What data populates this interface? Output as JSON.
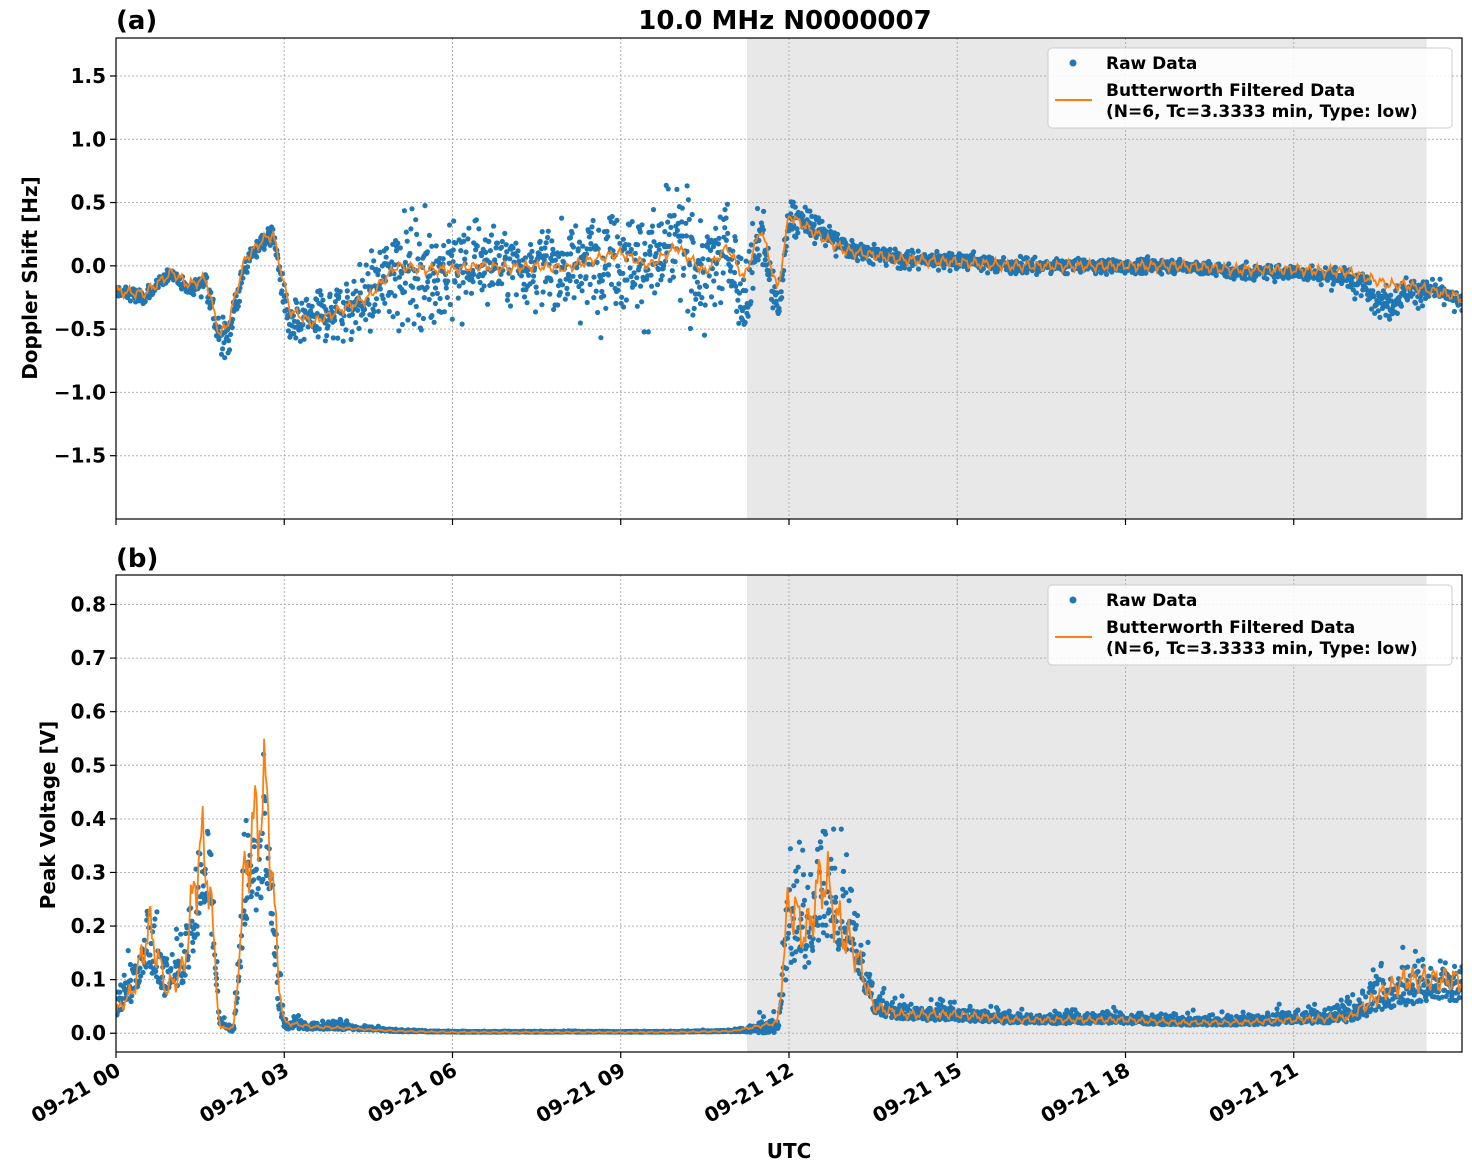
{
  "chart_data": [
    {
      "panel": "(a)",
      "title": "10.0 MHz N0000007",
      "type": "scatter",
      "xlabel": "",
      "ylabel": "Doppler Shift [Hz]",
      "xlim": [
        0,
        24
      ],
      "ylim": [
        -2.0,
        1.8
      ],
      "yticks": [
        1.5,
        1.0,
        0.5,
        0.0,
        -0.5,
        -1.0,
        -1.5
      ],
      "ytick_labels": [
        "1.5",
        "1.0",
        "0.5",
        "0.0",
        "−0.5",
        "−1.0",
        "−1.5"
      ],
      "xticks": [
        0,
        3,
        6,
        9,
        12,
        15,
        18,
        21
      ],
      "grid": true,
      "shaded_region": [
        11.25,
        23.37
      ],
      "legend": {
        "placement": "top-right",
        "entries": [
          "Raw Data",
          "Butterworth Filtered Data",
          "(N=6, Tc=3.3333 min, Type: low)"
        ]
      },
      "series": [
        {
          "name": "Raw Data",
          "kind": "scatter",
          "color": "#1f77b4",
          "x": [
            0.0,
            0.5,
            1.0,
            1.3,
            1.6,
            1.85,
            2.0,
            2.3,
            2.6,
            2.8,
            3.1,
            3.5,
            4.0,
            4.5,
            5.0,
            5.5,
            6.0,
            6.5,
            7.0,
            7.5,
            8.0,
            8.5,
            9.0,
            9.5,
            10.0,
            10.5,
            10.9,
            11.2,
            11.5,
            11.8,
            12.0,
            12.5,
            13.0,
            14.0,
            15.0,
            16.0,
            17.0,
            18.0,
            19.0,
            20.0,
            21.0,
            22.0,
            22.7,
            23.0,
            23.5,
            24.0
          ],
          "y": [
            -0.2,
            -0.25,
            -0.05,
            -0.2,
            -0.1,
            -0.6,
            -0.55,
            0.0,
            0.2,
            0.25,
            -0.5,
            -0.4,
            -0.35,
            -0.25,
            0.0,
            -0.05,
            -0.05,
            0.05,
            0.0,
            0.0,
            0.0,
            0.05,
            0.1,
            0.0,
            0.2,
            -0.1,
            0.2,
            -0.3,
            0.3,
            -0.4,
            0.4,
            0.3,
            0.15,
            0.05,
            0.05,
            0.0,
            0.0,
            0.0,
            0.0,
            -0.05,
            -0.05,
            -0.1,
            -0.3,
            -0.2,
            -0.2,
            -0.3
          ],
          "spread": [
            0.12,
            0.1,
            0.08,
            0.1,
            0.15,
            0.35,
            0.3,
            0.15,
            0.15,
            0.15,
            0.3,
            0.35,
            0.4,
            0.5,
            0.7,
            0.7,
            0.7,
            0.6,
            0.5,
            0.5,
            0.6,
            0.7,
            0.7,
            0.7,
            0.8,
            0.7,
            0.8,
            0.6,
            0.4,
            0.3,
            0.25,
            0.2,
            0.15,
            0.12,
            0.12,
            0.1,
            0.1,
            0.1,
            0.1,
            0.1,
            0.1,
            0.15,
            0.25,
            0.2,
            0.15,
            0.12
          ]
        },
        {
          "name": "Butterworth Filtered Data",
          "kind": "line",
          "color": "#ff7f0e",
          "x": [
            0.0,
            0.5,
            1.0,
            1.3,
            1.6,
            1.85,
            2.0,
            2.3,
            2.6,
            2.8,
            3.1,
            3.5,
            4.0,
            4.5,
            5.0,
            5.5,
            6.0,
            6.5,
            7.0,
            7.5,
            8.0,
            8.5,
            9.0,
            9.5,
            10.0,
            10.5,
            10.9,
            11.2,
            11.5,
            11.8,
            12.0,
            12.5,
            13.0,
            14.0,
            15.0,
            16.0,
            17.0,
            18.0,
            19.0,
            20.0,
            21.0,
            22.0,
            22.7,
            23.0,
            23.5,
            24.0
          ],
          "y": [
            -0.2,
            -0.22,
            -0.05,
            -0.15,
            -0.1,
            -0.55,
            -0.45,
            0.05,
            0.2,
            0.25,
            -0.35,
            -0.45,
            -0.35,
            -0.25,
            0.0,
            -0.03,
            -0.03,
            0.0,
            -0.02,
            0.0,
            -0.02,
            0.05,
            0.1,
            0.0,
            0.15,
            -0.05,
            0.15,
            -0.1,
            0.3,
            -0.2,
            0.4,
            0.25,
            0.12,
            0.05,
            0.03,
            0.0,
            0.0,
            0.0,
            0.0,
            -0.03,
            -0.03,
            -0.05,
            -0.15,
            -0.15,
            -0.2,
            -0.25
          ]
        }
      ]
    },
    {
      "panel": "(b)",
      "title": "",
      "type": "scatter",
      "xlabel": "UTC",
      "ylabel": "Peak Voltage [V]",
      "xlim": [
        0,
        24
      ],
      "ylim": [
        -0.035,
        0.855
      ],
      "yticks": [
        0.0,
        0.1,
        0.2,
        0.3,
        0.4,
        0.5,
        0.6,
        0.7,
        0.8
      ],
      "ytick_labels": [
        "0.0",
        "0.1",
        "0.2",
        "0.3",
        "0.4",
        "0.5",
        "0.6",
        "0.7",
        "0.8"
      ],
      "xticks": [
        0,
        3,
        6,
        9,
        12,
        15,
        18,
        21
      ],
      "xtick_labels": [
        "09-21 00",
        "09-21 03",
        "09-21 06",
        "09-21 09",
        "09-21 12",
        "09-21 15",
        "09-21 18",
        "09-21 21"
      ],
      "grid": true,
      "shaded_region": [
        11.25,
        23.37
      ],
      "legend": {
        "placement": "top-right",
        "entries": [
          "Raw Data",
          "Butterworth Filtered Data",
          "(N=6, Tc=3.3333 min, Type: low)"
        ]
      },
      "series": [
        {
          "name": "Raw Data",
          "kind": "scatter",
          "color": "#1f77b4",
          "x": [
            0.0,
            0.3,
            0.6,
            0.9,
            1.2,
            1.5,
            1.65,
            1.85,
            2.1,
            2.3,
            2.5,
            2.7,
            2.9,
            3.0,
            3.5,
            4.0,
            4.5,
            5.0,
            6.0,
            7.0,
            8.0,
            9.0,
            10.0,
            11.0,
            11.8,
            12.0,
            12.3,
            12.6,
            12.9,
            13.2,
            13.5,
            14.0,
            15.0,
            16.0,
            17.0,
            18.0,
            19.0,
            20.0,
            21.0,
            22.0,
            22.5,
            23.0,
            23.5,
            24.0
          ],
          "y": [
            0.05,
            0.1,
            0.2,
            0.1,
            0.15,
            0.3,
            0.35,
            0.02,
            0.01,
            0.3,
            0.35,
            0.4,
            0.1,
            0.02,
            0.015,
            0.015,
            0.01,
            0.005,
            0.003,
            0.003,
            0.003,
            0.003,
            0.003,
            0.005,
            0.02,
            0.25,
            0.2,
            0.3,
            0.25,
            0.2,
            0.06,
            0.04,
            0.04,
            0.03,
            0.03,
            0.03,
            0.025,
            0.025,
            0.03,
            0.04,
            0.08,
            0.1,
            0.1,
            0.1
          ],
          "spread": [
            0.05,
            0.1,
            0.2,
            0.1,
            0.15,
            0.3,
            0.25,
            0.02,
            0.02,
            0.25,
            0.3,
            0.3,
            0.15,
            0.03,
            0.02,
            0.02,
            0.01,
            0.005,
            0.002,
            0.002,
            0.002,
            0.002,
            0.002,
            0.005,
            0.05,
            0.3,
            0.2,
            0.3,
            0.25,
            0.2,
            0.06,
            0.04,
            0.04,
            0.03,
            0.03,
            0.03,
            0.025,
            0.025,
            0.03,
            0.05,
            0.1,
            0.12,
            0.1,
            0.1
          ]
        },
        {
          "name": "Butterworth Filtered Data",
          "kind": "line",
          "color": "#ff7f0e",
          "x": [
            0.0,
            0.3,
            0.6,
            0.9,
            1.2,
            1.5,
            1.65,
            1.85,
            2.1,
            2.3,
            2.5,
            2.7,
            2.9,
            3.0,
            3.5,
            4.0,
            4.5,
            5.0,
            6.0,
            7.0,
            8.0,
            9.0,
            10.0,
            11.0,
            11.8,
            12.0,
            12.3,
            12.6,
            12.9,
            13.2,
            13.5,
            14.0,
            15.0,
            16.0,
            17.0,
            18.0,
            19.0,
            20.0,
            21.0,
            22.0,
            22.5,
            23.0,
            23.5,
            24.0
          ],
          "y": [
            0.04,
            0.08,
            0.2,
            0.08,
            0.12,
            0.35,
            0.3,
            0.01,
            0.01,
            0.3,
            0.4,
            0.45,
            0.1,
            0.02,
            0.012,
            0.01,
            0.007,
            0.004,
            0.002,
            0.002,
            0.002,
            0.002,
            0.002,
            0.004,
            0.02,
            0.25,
            0.18,
            0.3,
            0.2,
            0.15,
            0.05,
            0.035,
            0.035,
            0.025,
            0.025,
            0.025,
            0.02,
            0.02,
            0.025,
            0.03,
            0.07,
            0.1,
            0.1,
            0.1
          ]
        }
      ]
    }
  ]
}
